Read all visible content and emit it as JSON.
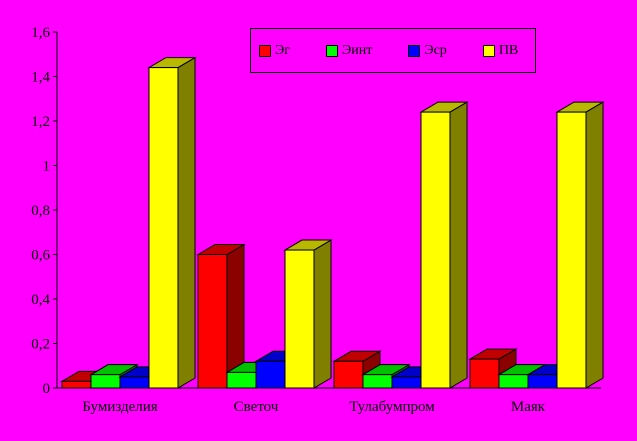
{
  "background_color": "#FF00FF",
  "text_color": "#000000",
  "chart_data": {
    "type": "bar",
    "style": "3d-columns",
    "title": "",
    "xlabel": "",
    "ylabel": "",
    "grid": false,
    "legend_position": "top",
    "ylim": [
      0,
      1.6
    ],
    "ytick_step": 0.2,
    "ytick_labels": [
      "0",
      "0,2",
      "0,4",
      "0,6",
      "0,8",
      "1",
      "1,2",
      "1,4",
      "1,6"
    ],
    "categories": [
      "Бумизделия",
      "Светоч",
      "Тулабумпром",
      "Маяк"
    ],
    "series": [
      {
        "name": "Эг",
        "color": "#FF0000",
        "top_color": "#C00000",
        "side_color": "#8B0000",
        "values": [
          0.03,
          0.6,
          0.12,
          0.13
        ]
      },
      {
        "name": "Эинт",
        "color": "#00FF00",
        "top_color": "#00C000",
        "side_color": "#008000",
        "values": [
          0.06,
          0.07,
          0.06,
          0.06
        ]
      },
      {
        "name": "Эср",
        "color": "#0000FF",
        "top_color": "#0000C8",
        "side_color": "#00008B",
        "values": [
          0.05,
          0.12,
          0.05,
          0.06
        ]
      },
      {
        "name": "ПВ",
        "color": "#FFFF00",
        "top_color": "#B8B800",
        "side_color": "#808000",
        "values": [
          1.44,
          0.62,
          1.24,
          1.24
        ]
      }
    ]
  }
}
